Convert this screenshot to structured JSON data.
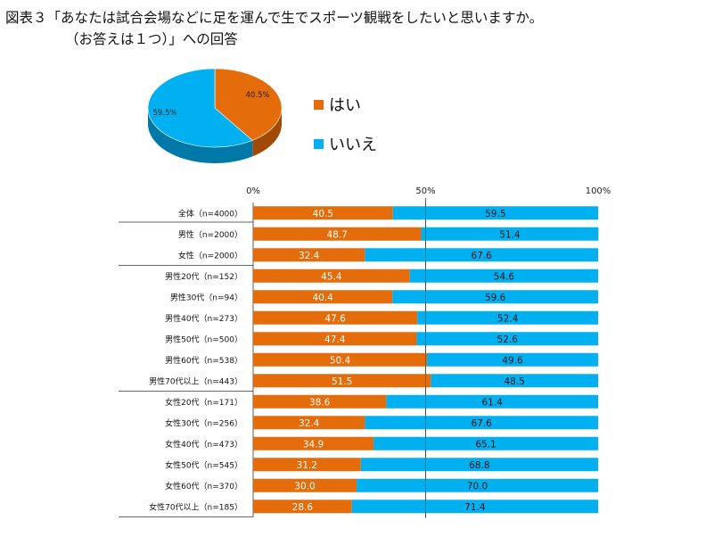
{
  "title": {
    "line1": "図表３「あなたは試合会場などに足を運んで生でスポーツ観戦をしたいと思いますか。",
    "line2": "（お答えは１つ）」への回答"
  },
  "colors": {
    "yes": "#E46C0A",
    "no": "#00B0F0",
    "no_dark": "#0078A8",
    "yes_dark": "#A04A05"
  },
  "pie": {
    "labels": [
      "はい",
      "いいえ"
    ],
    "values": [
      40.5,
      59.5
    ],
    "value_labels": [
      "40.5%",
      "59.5%"
    ]
  },
  "chart_data": {
    "type": "bar",
    "title": "",
    "xlim": [
      0,
      100
    ],
    "ticks": [
      "0%",
      "50%",
      "100%"
    ],
    "categories": [
      "全体（n=4000）",
      "男性（n=2000）",
      "女性（n=2000）",
      "男性20代（n=152）",
      "男性30代（n=94）",
      "男性40代（n=273）",
      "男性50代（n=500）",
      "男性60代（n=538）",
      "男性70代以上（n=443）",
      "女性20代（n=171）",
      "女性30代（n=256）",
      "女性40代（n=473）",
      "女性50代（n=545）",
      "女性60代（n=370）",
      "女性70代以上（n=185）"
    ],
    "series": [
      {
        "name": "はい",
        "values": [
          40.5,
          48.7,
          32.4,
          45.4,
          40.4,
          47.6,
          47.4,
          50.4,
          51.5,
          38.6,
          32.4,
          34.9,
          31.2,
          30.0,
          28.6
        ],
        "labels": [
          "40.5",
          "48.7",
          "32.4",
          "45.4",
          "40.4",
          "47.6",
          "47.4",
          "50.4",
          "51.5",
          "38.6",
          "32.4",
          "34.9",
          "31.2",
          "30.0",
          "28.6"
        ]
      },
      {
        "name": "いいえ",
        "values": [
          59.5,
          51.4,
          67.6,
          54.6,
          59.6,
          52.4,
          52.6,
          49.6,
          48.5,
          61.4,
          67.6,
          65.1,
          68.8,
          70.0,
          71.4
        ],
        "labels": [
          "59.5",
          "51.4",
          "67.6",
          "54.6",
          "59.6",
          "52.4",
          "52.6",
          "49.6",
          "48.5",
          "61.4",
          "67.6",
          "65.1",
          "68.8",
          "70.0",
          "71.4"
        ]
      }
    ],
    "legend": "right",
    "grid": true
  }
}
